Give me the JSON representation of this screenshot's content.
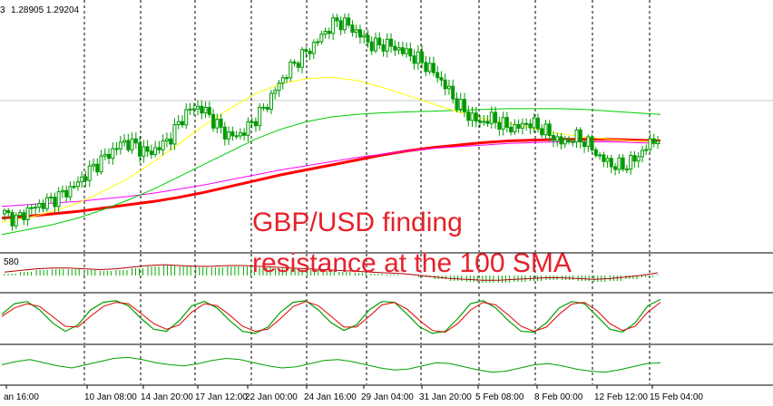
{
  "chart_data": {
    "type": "candlestick",
    "header": {
      "left_fragment": "3",
      "values": "1.28905 1.29204"
    },
    "oscillator_label": "580",
    "headline": {
      "line1": "GBP/USD finding",
      "line2": "resistance at the 100 SMA"
    },
    "x_ticks": [
      "an 16:00",
      "10 Jan 08:00",
      "14 Jan 20:00",
      "17 Jan 12:00",
      "22 Jan 00:00",
      "24 Jan 16:00",
      "29 Jan 04:00",
      "31 Jan 20:00",
      "5 Feb 08:00",
      "8 Feb 00:00",
      "12 Feb 12:00",
      "15 Feb 04:00"
    ],
    "price_series": [
      1.2855,
      1.2848,
      1.286,
      1.2866,
      1.2872,
      1.288,
      1.289,
      1.2905,
      1.2918,
      1.293,
      1.2942,
      1.2938,
      1.2928,
      1.2935,
      1.2948,
      1.2972,
      1.2985,
      1.2978,
      1.296,
      1.2948,
      1.2952,
      1.2968,
      1.2985,
      1.301,
      1.303,
      1.3045,
      1.3058,
      1.3075,
      1.3088,
      1.3082,
      1.307,
      1.3058,
      1.306,
      1.3055,
      1.3048,
      1.304,
      1.3028,
      1.3012,
      1.299,
      1.2975,
      1.2965,
      1.297,
      1.2962,
      1.2958,
      1.2965,
      1.296,
      1.295,
      1.294,
      1.2948,
      1.2942,
      1.2925,
      1.2915,
      1.2912,
      1.292,
      1.2935,
      1.2948
    ],
    "indicators": [
      {
        "name": "",
        "color": "#ff0000",
        "values": [
          1.285,
          1.2852,
          1.2855,
          1.2858,
          1.2862,
          1.2866,
          1.287,
          1.2875,
          1.2881,
          1.2888,
          1.2895,
          1.2902,
          1.2908,
          1.2914,
          1.292,
          1.2926,
          1.2931,
          1.2935,
          1.2938,
          1.2941,
          1.2943,
          1.2944,
          1.2945,
          1.2945,
          1.2945,
          1.2944,
          1.2943
        ]
      },
      {
        "name": "",
        "color": "#ff00ff",
        "values": [
          1.2864,
          1.2866,
          1.2868,
          1.287,
          1.2873,
          1.2876,
          1.288,
          1.2885,
          1.289,
          1.2896,
          1.2902,
          1.2908,
          1.2913,
          1.2918,
          1.2923,
          1.2927,
          1.2931,
          1.2934,
          1.2936,
          1.2938,
          1.294,
          1.2941,
          1.2942,
          1.2942,
          1.2942,
          1.2941,
          1.294
        ]
      },
      {
        "name": "",
        "color": "#00cc00",
        "values": [
          1.283,
          1.2836,
          1.2842,
          1.285,
          1.286,
          1.2872,
          1.2885,
          1.29,
          1.2915,
          1.293,
          1.2945,
          1.2957,
          1.2966,
          1.2972,
          1.2975,
          1.2977,
          1.2978,
          1.2979,
          1.298,
          1.2981,
          1.2982,
          1.2982,
          1.2982,
          1.2981,
          1.2979,
          1.2977,
          1.2975
        ]
      },
      {
        "name": "",
        "color": "#ffff00",
        "values": [
          1.2845,
          1.285,
          1.2858,
          1.2868,
          1.2882,
          1.2898,
          1.2918,
          1.294,
          1.2962,
          1.2982,
          1.3,
          1.3012,
          1.3018,
          1.302,
          1.3016,
          1.3008,
          1.2998,
          1.2988,
          1.2978,
          1.297,
          1.2964,
          1.2958,
          1.2952,
          1.2948,
          1.2945,
          1.2943,
          1.2942
        ]
      }
    ],
    "ylim": [
      1.282,
      1.31
    ],
    "macd_histogram": [
      0.2,
      0.4,
      0.6,
      0.7,
      0.7,
      0.6,
      0.5,
      0.6,
      0.8,
      1.0,
      1.1,
      1.0,
      0.9,
      0.9,
      1.0,
      1.0,
      0.9,
      0.8,
      0.7,
      0.6,
      0.5,
      0.4,
      0.3,
      0.2,
      0.1,
      0.0,
      -0.2,
      -0.4,
      -0.6,
      -0.7,
      -0.8,
      -0.8,
      -0.7,
      -0.6,
      -0.5,
      -0.5,
      -0.6,
      -0.7,
      -0.6,
      -0.4,
      -0.2,
      0.1
    ],
    "stoch_k": [
      60,
      85,
      90,
      70,
      40,
      20,
      35,
      70,
      88,
      92,
      80,
      50,
      25,
      20,
      45,
      80,
      90,
      75,
      45,
      20,
      15,
      30,
      65,
      88,
      92,
      70,
      40,
      22,
      35,
      70,
      90,
      88,
      60,
      30,
      15,
      20,
      50,
      85,
      92,
      75,
      45,
      20,
      18,
      40,
      75,
      90,
      85,
      55,
      25,
      18,
      40,
      80,
      95
    ],
    "stoch_d": [
      55,
      75,
      85,
      78,
      55,
      32,
      30,
      55,
      78,
      88,
      85,
      62,
      38,
      25,
      35,
      65,
      85,
      80,
      58,
      32,
      20,
      25,
      50,
      78,
      90,
      80,
      55,
      30,
      30,
      55,
      82,
      88,
      72,
      45,
      22,
      18,
      38,
      70,
      88,
      82,
      58,
      32,
      20,
      30,
      60,
      84,
      88,
      68,
      38,
      22,
      32,
      65,
      88
    ],
    "rsi": [
      55,
      58,
      60,
      57,
      54,
      52,
      55,
      58,
      61,
      62,
      60,
      57,
      55,
      54,
      56,
      59,
      61,
      60,
      57,
      54,
      52,
      53,
      56,
      59,
      60,
      58,
      55,
      52,
      50,
      51,
      54,
      57,
      56,
      53,
      50,
      48,
      49,
      52,
      55,
      56,
      54,
      51,
      49,
      48,
      50,
      53,
      56,
      57
    ]
  }
}
